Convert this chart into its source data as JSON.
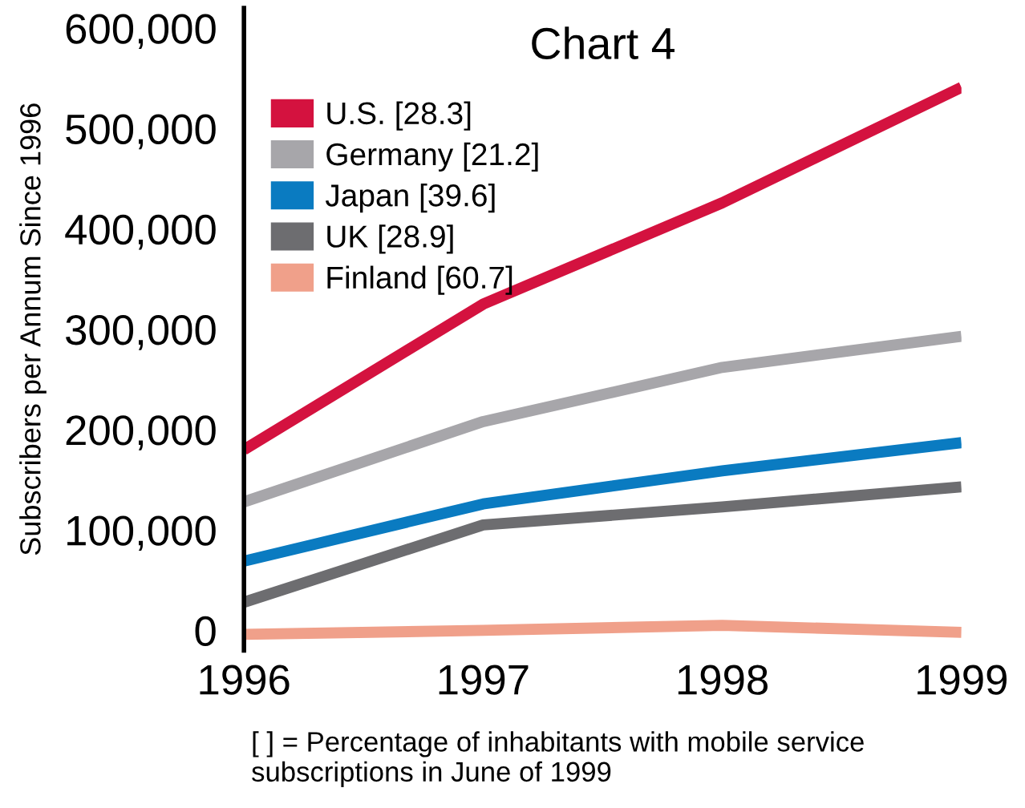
{
  "chart_data": {
    "type": "line",
    "title": "Chart 4",
    "ylabel": "Subscribers per Annum Since 1996",
    "x": [
      1996,
      1997,
      1998,
      1999
    ],
    "xlim": [
      1996,
      1999
    ],
    "xticks": [
      1996,
      1997,
      1998,
      1999
    ],
    "ylim": [
      -20000,
      620000
    ],
    "yticks": [
      {
        "value": 0,
        "label": "0"
      },
      {
        "value": 100000,
        "label": "100,000"
      },
      {
        "value": 200000,
        "label": "200,000"
      },
      {
        "value": 300000,
        "label": "300,000"
      },
      {
        "value": 400000,
        "label": "400,000"
      },
      {
        "value": 500000,
        "label": "500,000"
      },
      {
        "value": 600000,
        "label": "600,000"
      }
    ],
    "grid": false,
    "legend": "top left",
    "marker": "none",
    "line_style": "solid",
    "series": [
      {
        "name": "U.S. [28.3]",
        "color": "#d4123f",
        "values": [
          180000,
          325000,
          426000,
          541000
        ]
      },
      {
        "name": "Germany [21.2]",
        "color": "#a7a6aa",
        "values": [
          128000,
          208000,
          262000,
          293000
        ]
      },
      {
        "name": "Japan [39.6]",
        "color": "#0a7bc1",
        "values": [
          69000,
          126000,
          159000,
          187000
        ]
      },
      {
        "name": "UK [28.9]",
        "color": "#6d6d70",
        "values": [
          28000,
          105000,
          123000,
          143000
        ]
      },
      {
        "name": "Finland [60.7]",
        "color": "#f0a08a",
        "values": [
          -4000,
          0,
          5000,
          -2000
        ]
      }
    ],
    "annotations": [
      "[ ] = Percentage of inhabitants with mobile service\nsubscriptions in June of 1999"
    ]
  }
}
